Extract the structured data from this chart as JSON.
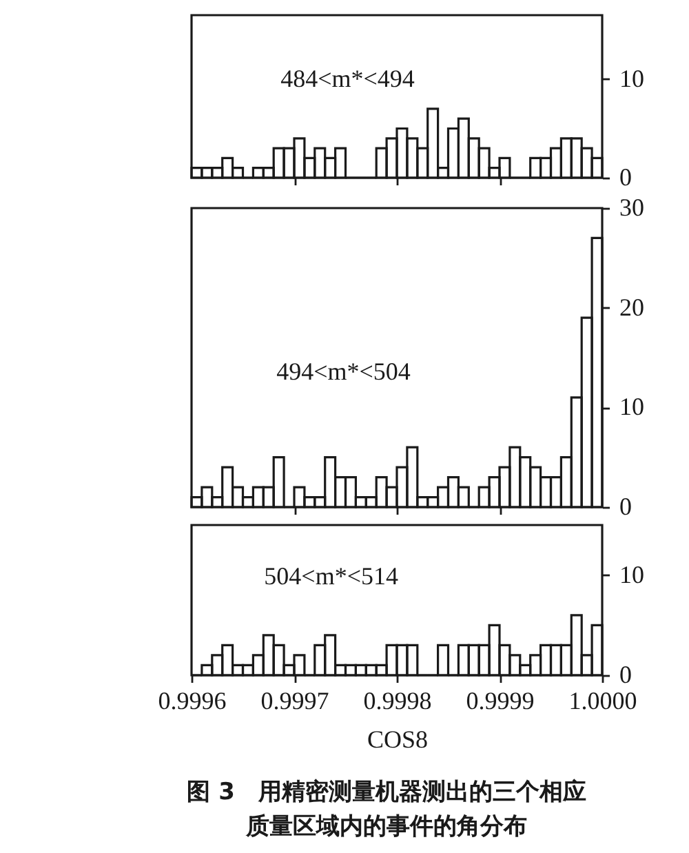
{
  "chart_data": [
    {
      "type": "histogram",
      "color": "#1a1a1a",
      "annotations": [
        "484<m*<494"
      ],
      "tick_labels": "y",
      "grid": false,
      "bins": [
        0.9996,
        0.99961,
        0.99962,
        0.99963,
        0.99964,
        0.99965,
        0.99966,
        0.99967,
        0.99968,
        0.99969,
        0.9997,
        0.99971,
        0.99972,
        0.99973,
        0.99974,
        0.99975,
        0.99976,
        0.99977,
        0.99978,
        0.99979,
        0.9998,
        0.99981,
        0.99982,
        0.99983,
        0.99984,
        0.99985,
        0.99986,
        0.99987,
        0.99988,
        0.99989,
        0.9999,
        0.99991,
        0.99992,
        0.99993,
        0.99994,
        0.99995,
        0.99996,
        0.99997,
        0.99998,
        0.99999,
        1.0
      ],
      "values": [
        1,
        1,
        1,
        2,
        1,
        0,
        1,
        1,
        3,
        3,
        4,
        2,
        3,
        2,
        3,
        0,
        0,
        0,
        3,
        4,
        5,
        4,
        3,
        7,
        1,
        5,
        6,
        4,
        3,
        1,
        2,
        0,
        0,
        2,
        2,
        3,
        4,
        4,
        3,
        2
      ],
      "xlim": [
        0.9996,
        1.0
      ],
      "xticks": [
        {
          "value": 0.9997,
          "label": null
        },
        {
          "value": 0.9998,
          "label": null
        },
        {
          "value": 0.9999,
          "label": null
        }
      ],
      "ylim": [
        0,
        16.5
      ],
      "yticks": [
        0,
        10
      ]
    },
    {
      "type": "histogram",
      "color": "#1a1a1a",
      "annotations": [
        "494<m*<504"
      ],
      "tick_labels": "y",
      "grid": false,
      "bins": [
        0.9996,
        0.99961,
        0.99962,
        0.99963,
        0.99964,
        0.99965,
        0.99966,
        0.99967,
        0.99968,
        0.99969,
        0.9997,
        0.99971,
        0.99972,
        0.99973,
        0.99974,
        0.99975,
        0.99976,
        0.99977,
        0.99978,
        0.99979,
        0.9998,
        0.99981,
        0.99982,
        0.99983,
        0.99984,
        0.99985,
        0.99986,
        0.99987,
        0.99988,
        0.99989,
        0.9999,
        0.99991,
        0.99992,
        0.99993,
        0.99994,
        0.99995,
        0.99996,
        0.99997,
        0.99998,
        0.99999,
        1.0
      ],
      "values": [
        1,
        2,
        1,
        4,
        2,
        1,
        2,
        2,
        5,
        0,
        2,
        1,
        1,
        5,
        3,
        3,
        1,
        1,
        3,
        2,
        4,
        6,
        1,
        1,
        2,
        3,
        2,
        0,
        2,
        3,
        4,
        6,
        5,
        4,
        3,
        3,
        5,
        11,
        19,
        27
      ],
      "xlim": [
        0.9996,
        1.0
      ],
      "xticks": [
        {
          "value": 0.9997,
          "label": null
        },
        {
          "value": 0.9998,
          "label": null
        },
        {
          "value": 0.9999,
          "label": null
        }
      ],
      "ylim": [
        0,
        30
      ],
      "yticks": [
        0,
        10,
        20,
        30
      ]
    },
    {
      "type": "histogram",
      "color": "#1a1a1a",
      "annotations": [
        "504<m*<514",
        "图 3　用精密测量机器测出的三个相应质量区域内的事件的角分布"
      ],
      "xlabel": "COS8",
      "grid": false,
      "bins": [
        0.9996,
        0.99961,
        0.99962,
        0.99963,
        0.99964,
        0.99965,
        0.99966,
        0.99967,
        0.99968,
        0.99969,
        0.9997,
        0.99971,
        0.99972,
        0.99973,
        0.99974,
        0.99975,
        0.99976,
        0.99977,
        0.99978,
        0.99979,
        0.9998,
        0.99981,
        0.99982,
        0.99983,
        0.99984,
        0.99985,
        0.99986,
        0.99987,
        0.99988,
        0.99989,
        0.9999,
        0.99991,
        0.99992,
        0.99993,
        0.99994,
        0.99995,
        0.99996,
        0.99997,
        0.99998,
        0.99999,
        1.0
      ],
      "values": [
        0,
        1,
        2,
        3,
        1,
        1,
        2,
        4,
        3,
        1,
        2,
        0,
        3,
        4,
        1,
        1,
        1,
        1,
        1,
        3,
        3,
        3,
        0,
        0,
        3,
        0,
        3,
        3,
        3,
        5,
        3,
        2,
        1,
        2,
        3,
        3,
        3,
        6,
        2,
        5
      ],
      "xlim": [
        0.9996,
        1.0
      ],
      "xticks": [
        0.9996,
        0.9997,
        0.9998,
        0.9999,
        {
          "value": 1.0,
          "label": "1.0000"
        }
      ],
      "ylim": [
        0,
        15
      ],
      "yticks": [
        0,
        10
      ]
    }
  ]
}
